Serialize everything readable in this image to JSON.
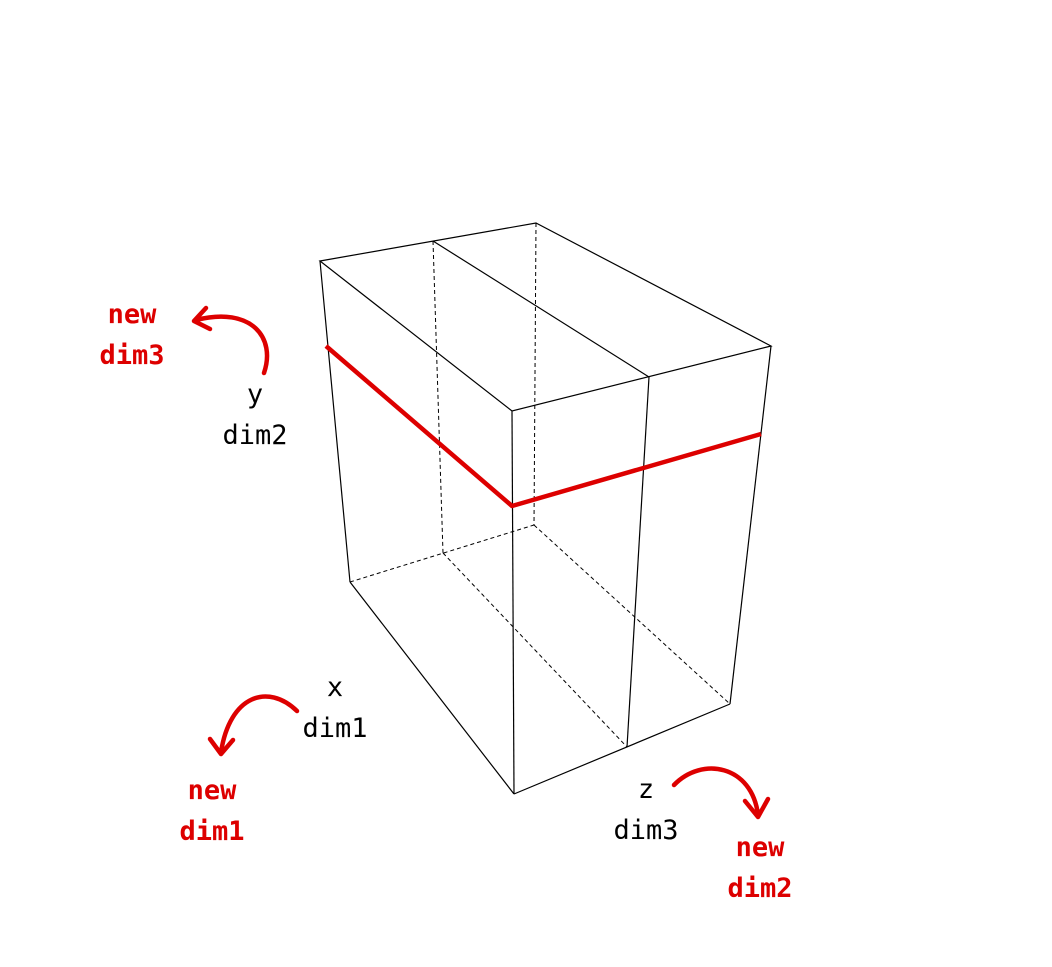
{
  "colors": {
    "edge": "#000000",
    "highlight": "#dd0000"
  },
  "axes": {
    "x": {
      "name": "x",
      "dim": "dim1",
      "new_name": "new",
      "new_dim": "dim1"
    },
    "y": {
      "name": "y",
      "dim": "dim2",
      "new_name": "new",
      "new_dim": "dim3"
    },
    "z": {
      "name": "z",
      "dim": "dim3",
      "new_name": "new",
      "new_dim": "dim2"
    }
  },
  "icons": {
    "rotation_arrow": "curved-arrow-icon"
  }
}
